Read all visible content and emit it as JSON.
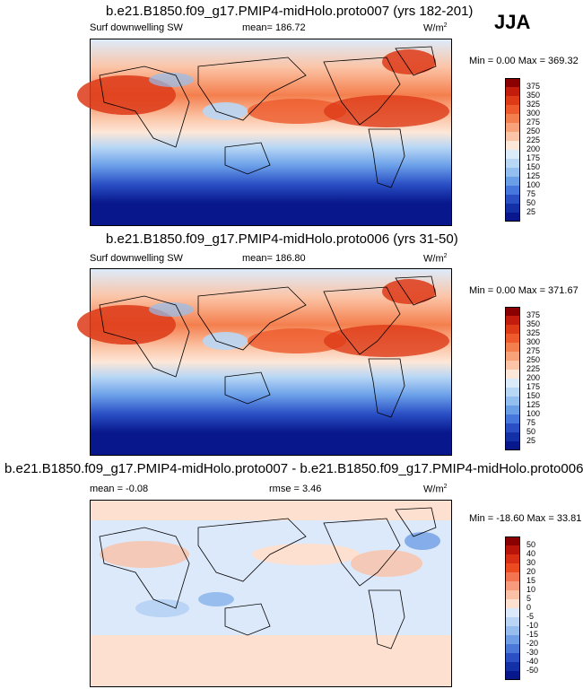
{
  "season": "JJA",
  "panels": [
    {
      "title": "b.e21.B1850.f09_g17.PMIP4-midHolo.proto007 (yrs 182-201)",
      "variable": "Surf downwelling SW",
      "stat": "mean= 186.72",
      "units": "W/m",
      "units_sup": "2",
      "minmax": "Min =   0.00 Max = 369.32",
      "colorbar": [
        "375",
        "350",
        "325",
        "300",
        "275",
        "250",
        "225",
        "200",
        "175",
        "150",
        "125",
        "100",
        "75",
        "50",
        "25"
      ],
      "colors": [
        "#8b0000",
        "#c11c0c",
        "#dd3a17",
        "#ee5a2c",
        "#f47f4e",
        "#f8a27a",
        "#fbc4a6",
        "#fde7d8",
        "#dcebfa",
        "#b8d7f5",
        "#93bff0",
        "#6a9fe8",
        "#4677dc",
        "#2a4fc5",
        "#1430a6",
        "#08188c"
      ]
    },
    {
      "title": "b.e21.B1850.f09_g17.PMIP4-midHolo.proto006 (yrs 31-50)",
      "variable": "Surf downwelling SW",
      "stat": "mean= 186.80",
      "units": "W/m",
      "units_sup": "2",
      "minmax": "Min =   0.00 Max = 371.67",
      "colorbar": [
        "375",
        "350",
        "325",
        "300",
        "275",
        "250",
        "225",
        "200",
        "175",
        "150",
        "125",
        "100",
        "75",
        "50",
        "25"
      ],
      "colors": [
        "#8b0000",
        "#c11c0c",
        "#dd3a17",
        "#ee5a2c",
        "#f47f4e",
        "#f8a27a",
        "#fbc4a6",
        "#fde7d8",
        "#dcebfa",
        "#b8d7f5",
        "#93bff0",
        "#6a9fe8",
        "#4677dc",
        "#2a4fc5",
        "#1430a6",
        "#08188c"
      ]
    },
    {
      "title": "b.e21.B1850.f09_g17.PMIP4-midHolo.proto007 - b.e21.B1850.f09_g17.PMIP4-midHolo.proto006",
      "stat": "mean =  -0.08",
      "stat2": "rmse =   3.46",
      "units": "W/m",
      "units_sup": "2",
      "minmax": "Min = -18.60 Max =  33.81",
      "colorbar": [
        "50",
        "40",
        "30",
        "20",
        "15",
        "10",
        "5",
        "0",
        "-5",
        "-10",
        "-15",
        "-20",
        "-30",
        "-40",
        "-50"
      ],
      "colors": [
        "#8b0000",
        "#b9140a",
        "#d72e14",
        "#ec4b22",
        "#f47350",
        "#f89b7c",
        "#fbc1a6",
        "#fde0d0",
        "#dce9fa",
        "#bad4f5",
        "#97bdef",
        "#6f9ee6",
        "#4a79da",
        "#2b50c4",
        "#1430a6",
        "#08188c"
      ]
    }
  ]
}
